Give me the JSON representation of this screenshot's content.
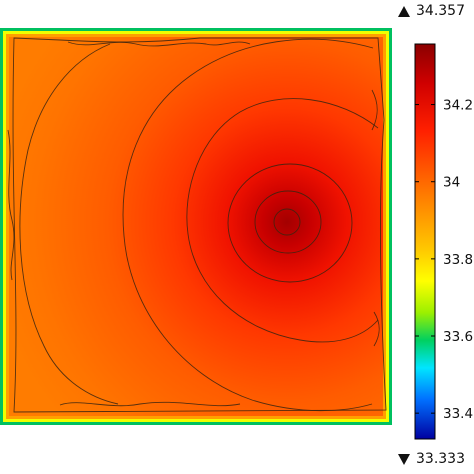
{
  "chart_data": {
    "type": "heatmap",
    "title": "",
    "xlabel": "",
    "ylabel": "",
    "colormap": "rainbow",
    "range": {
      "max": 34.357,
      "min": 33.333
    },
    "max_label": "34.357",
    "min_label": "33.333",
    "colorbar_ticks": [
      {
        "value": 34.2,
        "label": "34.2"
      },
      {
        "value": 34.0,
        "label": "34"
      },
      {
        "value": 33.8,
        "label": "33.8"
      },
      {
        "value": 33.6,
        "label": "33.6"
      },
      {
        "value": 33.4,
        "label": "33.4"
      }
    ],
    "hotspot": {
      "value": 34.357
    },
    "field_typical": 34.0,
    "edge_value": 33.4,
    "contour_levels": [
      33.45,
      33.65,
      33.85,
      33.95,
      34.03,
      34.12,
      34.2,
      34.27,
      34.33
    ],
    "colors": {
      "dark_red": "#8b0000",
      "red": "#ff1a00",
      "orange": "#ff7a00",
      "yellow": "#ffff00",
      "green": "#00d060",
      "cyan": "#00e5ff",
      "blue": "#0000c8"
    }
  }
}
